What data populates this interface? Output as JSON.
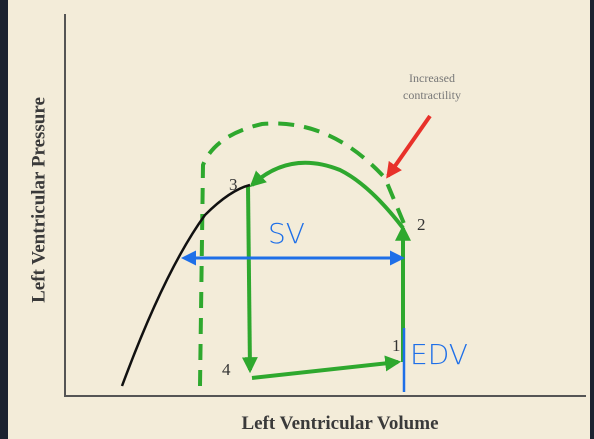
{
  "axes": {
    "y_label": "Left Ventricular Pressure",
    "x_label": "Left Ventricular Volume"
  },
  "annotation": {
    "lines": [
      "Increased",
      "contractility"
    ]
  },
  "points": [
    "1",
    "2",
    "3",
    "4"
  ],
  "handwriting": {
    "stroke_volume": "SV",
    "end_diastolic_volume": "EDV"
  }
}
